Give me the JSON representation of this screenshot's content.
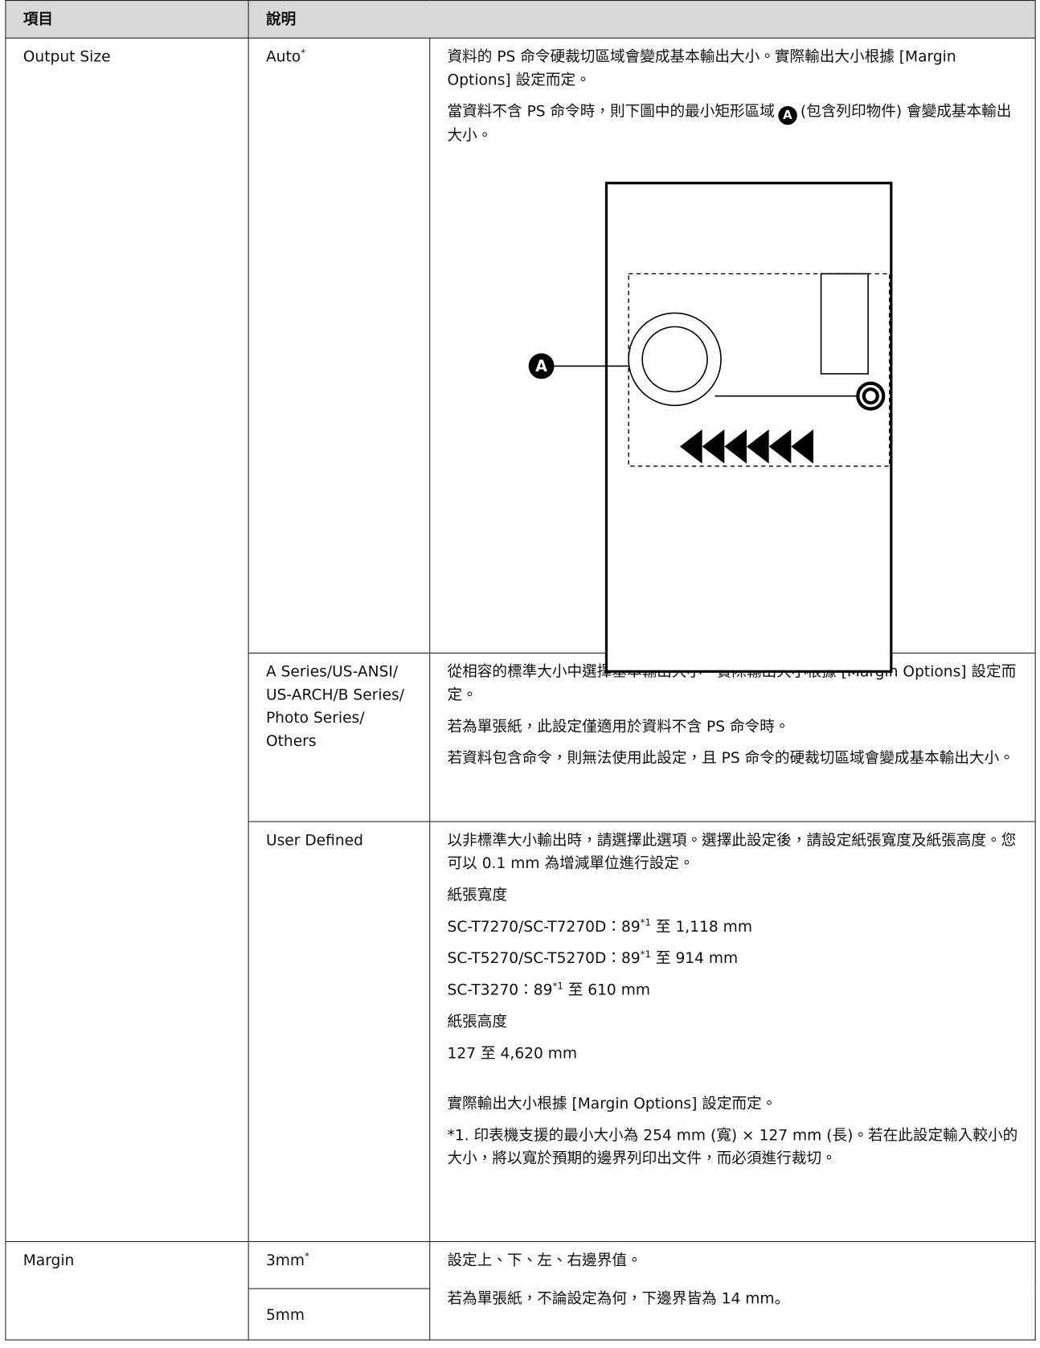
{
  "table": {
    "header": [
      "項目",
      "說明"
    ],
    "output_size": {
      "item": "Output Size",
      "auto": {
        "option": "Auto",
        "mark": "*",
        "paragraphs": [
          "資料的 PS 命令硬裁切區域會變成基本輸出大小。實際輸出大小根據 [Margin Options] 設定而定。"
        ],
        "note": {
          "before": "當資料不含 PS 命令時，則下圖中的最小矩形區域",
          "marker": "A",
          "after": "(包含列印物件) 會變成基本輸出大小。"
        },
        "diagram_marker": "A"
      },
      "series": {
        "option_lines": [
          "A Series/US-ANSI/",
          "US-ARCH/B Series/",
          "Photo Series/",
          "Others"
        ],
        "paragraphs": [
          "從相容的標準大小中選擇基本輸出大小。實際輸出大小根據 [Margin Options] 設定而定。",
          "若為單張紙，此設定僅適用於資料不含 PS 命令時。",
          "若資料包含命令，則無法使用此設定，且 PS 命令的硬裁切區域會變成基本輸出大小。"
        ]
      },
      "user_defined": {
        "option": "User Defined",
        "intro": "以非標準大小輸出時，請選擇此選項。選擇此設定後，請設定紙張寬度及紙張高度。您可以 0.1 mm 為增減單位進行設定。",
        "width_title": "紙張寬度",
        "widths": [
          {
            "prefix": "SC-T7270/SC-T7270D：89",
            "sup": "*1",
            "suffix": " 至 1,118 mm"
          },
          {
            "prefix": "SC-T5270/SC-T5270D：89",
            "sup": "*1",
            "suffix": " 至 914 mm"
          },
          {
            "prefix": "SC-T3270：89",
            "sup": "*1",
            "suffix": " 至 610 mm"
          }
        ],
        "height_title": "紙張高度",
        "height_range": "127 至 4,620 mm",
        "actual": "實際輸出大小根據 [Margin Options] 設定而定。",
        "footnote": "*1. 印表機支援的最小大小為 254 mm (寬) × 127 mm (長)。若在此設定輸入較小的大小，將以寬於預期的邊界列印出文件，而必須進行裁切。"
      }
    },
    "margin": {
      "item": "Margin",
      "options": [
        {
          "option": "3mm",
          "mark": "*"
        },
        {
          "option": "5mm"
        }
      ],
      "paragraphs": [
        "設定上、下、左、右邊界值。",
        "若為單張紙，不論設定為何，下邊界皆為 14 mm。"
      ]
    }
  }
}
